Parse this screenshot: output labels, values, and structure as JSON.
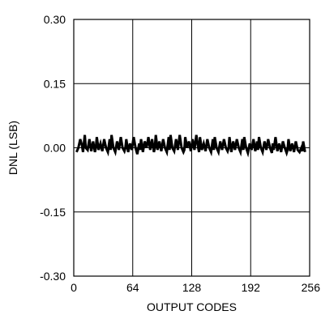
{
  "chart_data": {
    "type": "line",
    "xlabel": "OUTPUT CODES",
    "ylabel": "DNL (LSB)",
    "xlim": [
      0,
      256
    ],
    "ylim": [
      -0.3,
      0.3
    ],
    "x_ticks": [
      0,
      64,
      128,
      192,
      256
    ],
    "x_tick_labels": [
      "0",
      "64",
      "128",
      "192",
      "256"
    ],
    "y_ticks": [
      0.3,
      0.15,
      0.0,
      -0.15,
      -0.3
    ],
    "y_tick_labels": [
      "0.30",
      "0.15",
      "0.00",
      "-0.15",
      "-0.30"
    ],
    "grid": true,
    "series": [
      {
        "color": "#000000",
        "x": [
          3,
          5,
          7,
          9,
          10,
          12,
          13,
          15,
          17,
          19,
          21,
          23,
          24,
          25,
          27,
          29,
          31,
          33,
          35,
          37,
          39,
          40,
          41,
          43,
          45,
          47,
          49,
          51,
          53,
          55,
          56,
          57,
          59,
          61,
          63,
          65,
          67,
          69,
          71,
          72,
          73,
          75,
          77,
          79,
          81,
          83,
          85,
          87,
          88,
          89,
          91,
          93,
          95,
          97,
          99,
          101,
          103,
          104,
          105,
          107,
          109,
          111,
          113,
          115,
          117,
          119,
          120,
          121,
          123,
          125,
          127,
          129,
          131,
          133,
          135,
          136,
          137,
          139,
          141,
          143,
          145,
          147,
          149,
          151,
          152,
          153,
          155,
          157,
          159,
          161,
          163,
          165,
          167,
          168,
          169,
          171,
          173,
          175,
          177,
          179,
          181,
          183,
          184,
          185,
          187,
          189,
          191,
          193,
          195,
          197,
          199,
          200,
          201,
          203,
          205,
          207,
          209,
          211,
          213,
          215,
          216,
          217,
          219,
          221,
          223,
          225,
          227,
          229,
          231,
          232,
          233,
          235,
          237,
          239,
          241,
          243,
          245,
          247,
          248,
          249,
          251
        ],
        "y": [
          -0.01,
          0.0,
          0.02,
          0.005,
          -0.01,
          0.03,
          0.0,
          -0.005,
          0.02,
          -0.008,
          0.015,
          -0.01,
          0.0,
          0.025,
          -0.005,
          0.01,
          -0.008,
          0.02,
          0.0,
          -0.01,
          0.02,
          -0.005,
          0.03,
          0.0,
          -0.01,
          0.015,
          -0.005,
          0.025,
          0.0,
          -0.008,
          0.0,
          0.02,
          -0.01,
          0.01,
          -0.005,
          0.025,
          0.0,
          -0.015,
          0.01,
          -0.005,
          0.02,
          -0.01,
          0.015,
          0.0,
          0.025,
          -0.005,
          0.02,
          -0.01,
          0.0,
          0.03,
          -0.005,
          0.015,
          -0.008,
          0.02,
          0.0,
          -0.01,
          0.025,
          -0.005,
          0.03,
          0.0,
          -0.008,
          0.02,
          -0.005,
          0.03,
          0.0,
          -0.01,
          -0.005,
          0.025,
          0.0,
          0.015,
          -0.008,
          0.02,
          -0.005,
          0.03,
          0.0,
          -0.01,
          0.025,
          -0.005,
          0.01,
          -0.008,
          0.02,
          0.0,
          -0.01,
          0.02,
          -0.005,
          0.025,
          0.0,
          -0.01,
          0.015,
          -0.005,
          0.02,
          0.0,
          -0.008,
          0.0,
          0.025,
          -0.01,
          0.015,
          -0.005,
          0.02,
          0.0,
          -0.01,
          0.02,
          -0.005,
          0.025,
          0.0,
          -0.012,
          0.01,
          -0.005,
          0.02,
          -0.008,
          0.015,
          -0.005,
          0.025,
          0.0,
          -0.01,
          0.015,
          -0.005,
          0.02,
          0.0,
          -0.012,
          0.01,
          -0.005,
          0.025,
          -0.008,
          0.01,
          -0.01,
          0.015,
          0.0,
          -0.012,
          -0.005,
          0.02,
          -0.008,
          0.01,
          -0.01,
          0.015,
          -0.005,
          -0.01,
          0.0,
          -0.008,
          0.015,
          -0.01
        ]
      }
    ]
  }
}
